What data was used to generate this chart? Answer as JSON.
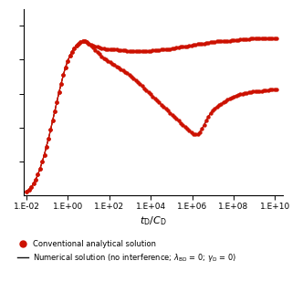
{
  "xlabel_latex": "$t_{\\mathrm{D}}/C_{\\mathrm{D}}$",
  "xtick_labels": [
    "1.E-02",
    "1.E+00",
    "1.E+02",
    "1.E+04",
    "1.E+06",
    "1.E+08",
    "1.E+10"
  ],
  "xtick_values": [
    0.01,
    1.0,
    100.0,
    10000.0,
    1000000.0,
    100000000.0,
    10000000000.0
  ],
  "legend_dot_label": "Conventional analytical solution",
  "legend_line_label": "Numerical solution (no interference; λ_BD = 0; γ_D = 0)",
  "dot_color": "#cc1100",
  "line_color": "#111111",
  "bg_color": "#ffffff",
  "upper_x": [
    0.01,
    0.013,
    0.017,
    0.022,
    0.028,
    0.035,
    0.045,
    0.057,
    0.072,
    0.09,
    0.115,
    0.145,
    0.18,
    0.23,
    0.29,
    0.37,
    0.47,
    0.6,
    0.76,
    0.97,
    1.23,
    1.56,
    1.97,
    2.5,
    3.17,
    4.0,
    5.1,
    6.4,
    8.1,
    10.3,
    13.0,
    16.5,
    21.0,
    26.5,
    33.5,
    42.5,
    54.0,
    68.0,
    86.0,
    110.0,
    140.0,
    177.0,
    225.0,
    285.0,
    360.0,
    456.0,
    578.0,
    732.0,
    928.0,
    1175.0,
    1489.0,
    1887.0,
    2390.0,
    3030.0,
    3840.0,
    4870.0,
    6170.0,
    7820.0,
    9910.0,
    12560.0,
    15920.0,
    20180.0,
    25580.0,
    32430.0,
    41110.0,
    52100.0,
    66100.0,
    83800.0,
    106200.0,
    134600.0,
    170600.0,
    216200.0,
    274000.0,
    347200.0,
    440200.0,
    557900.0,
    707300.0,
    896700.0,
    1136800.0,
    1441000.0,
    1827000.0,
    2317000.0,
    2937000.0,
    3724000.0,
    4723000.0,
    5990000.0,
    7595000.0,
    9629000.0,
    12210000.0,
    15490000.0,
    19640000.0,
    24900000.0,
    31580000.0,
    40040000.0,
    50800000.0,
    64400000.0,
    81700000.0,
    103600000.0,
    131400000.0,
    166600000.0,
    211300000.0,
    267900000.0,
    339800000.0,
    430900000.0,
    546500000.0,
    693000000.0,
    879000000.0,
    1114000000.0,
    1413000000.0,
    1792000000.0,
    2272000000.0,
    2880000000.0,
    3653000000.0,
    4632000000.0,
    5875000000.0,
    7450000000.0,
    9450000000.0,
    11980000000.0
  ],
  "upper_y": [
    0.06,
    0.09,
    0.13,
    0.18,
    0.24,
    0.31,
    0.4,
    0.5,
    0.6,
    0.72,
    0.84,
    0.97,
    1.1,
    1.24,
    1.38,
    1.52,
    1.65,
    1.78,
    1.89,
    1.98,
    2.06,
    2.12,
    2.17,
    2.21,
    2.24,
    2.26,
    2.27,
    2.27,
    2.26,
    2.24,
    2.22,
    2.21,
    2.2,
    2.19,
    2.18,
    2.17,
    2.17,
    2.16,
    2.16,
    2.16,
    2.15,
    2.15,
    2.15,
    2.14,
    2.14,
    2.14,
    2.14,
    2.13,
    2.13,
    2.13,
    2.13,
    2.13,
    2.13,
    2.13,
    2.13,
    2.13,
    2.13,
    2.13,
    2.13,
    2.14,
    2.14,
    2.14,
    2.14,
    2.15,
    2.15,
    2.15,
    2.16,
    2.16,
    2.17,
    2.17,
    2.18,
    2.18,
    2.19,
    2.19,
    2.2,
    2.2,
    2.21,
    2.21,
    2.22,
    2.22,
    2.23,
    2.23,
    2.24,
    2.24,
    2.25,
    2.25,
    2.26,
    2.26,
    2.26,
    2.27,
    2.27,
    2.27,
    2.28,
    2.28,
    2.28,
    2.28,
    2.29,
    2.29,
    2.29,
    2.29,
    2.3,
    2.3,
    2.3,
    2.3,
    2.3,
    2.31,
    2.31,
    2.31,
    2.31,
    2.31,
    2.32,
    2.32,
    2.32,
    2.32,
    2.32,
    2.32,
    2.32,
    2.32
  ],
  "lower_x": [
    0.01,
    0.013,
    0.017,
    0.022,
    0.028,
    0.035,
    0.045,
    0.057,
    0.072,
    0.09,
    0.115,
    0.145,
    0.18,
    0.23,
    0.29,
    0.37,
    0.47,
    0.6,
    0.76,
    0.97,
    1.23,
    1.56,
    1.97,
    2.5,
    3.17,
    4.0,
    5.1,
    6.4,
    8.1,
    10.3,
    13.0,
    16.5,
    21.0,
    26.5,
    33.5,
    42.5,
    54.0,
    68.0,
    86.0,
    110.0,
    140.0,
    177.0,
    225.0,
    285.0,
    360.0,
    456.0,
    578.0,
    732.0,
    928.0,
    1175.0,
    1489.0,
    1887.0,
    2390.0,
    3030.0,
    3840.0,
    4870.0,
    6170.0,
    7820.0,
    9910.0,
    12560.0,
    15920.0,
    20180.0,
    25580.0,
    32430.0,
    41110.0,
    52100.0,
    66100.0,
    83800.0,
    106200.0,
    134600.0,
    170600.0,
    216200.0,
    274000.0,
    347200.0,
    440200.0,
    557900.0,
    707300.0,
    896700.0,
    1136800.0,
    1441000.0,
    1827000.0,
    2317000.0,
    2937000.0,
    3724000.0,
    4723000.0,
    5990000.0,
    7595000.0,
    9629000.0,
    12210000.0,
    15490000.0,
    19640000.0,
    24900000.0,
    31580000.0,
    40040000.0,
    50800000.0,
    64400000.0,
    81700000.0,
    103600000.0,
    131400000.0,
    166600000.0,
    211300000.0,
    267900000.0,
    339800000.0,
    430900000.0,
    546500000.0,
    693000000.0,
    879000000.0,
    1114000000.0,
    1413000000.0,
    1792000000.0,
    2272000000.0,
    2880000000.0,
    3653000000.0,
    4632000000.0,
    5875000000.0,
    7450000000.0,
    9450000000.0,
    11980000000.0
  ],
  "lower_y": [
    0.06,
    0.09,
    0.13,
    0.18,
    0.24,
    0.31,
    0.4,
    0.5,
    0.6,
    0.72,
    0.84,
    0.97,
    1.1,
    1.24,
    1.38,
    1.52,
    1.65,
    1.78,
    1.89,
    1.98,
    2.06,
    2.12,
    2.17,
    2.21,
    2.24,
    2.26,
    2.27,
    2.27,
    2.26,
    2.24,
    2.21,
    2.18,
    2.14,
    2.11,
    2.08,
    2.05,
    2.02,
    2.0,
    1.98,
    1.96,
    1.94,
    1.92,
    1.9,
    1.88,
    1.86,
    1.84,
    1.82,
    1.8,
    1.78,
    1.75,
    1.73,
    1.7,
    1.67,
    1.64,
    1.61,
    1.58,
    1.55,
    1.52,
    1.49,
    1.46,
    1.43,
    1.4,
    1.37,
    1.34,
    1.31,
    1.28,
    1.25,
    1.22,
    1.19,
    1.16,
    1.13,
    1.1,
    1.07,
    1.04,
    1.015,
    0.985,
    0.956,
    0.93,
    0.91,
    0.905,
    0.905,
    0.935,
    0.98,
    1.04,
    1.1,
    1.16,
    1.21,
    1.25,
    1.28,
    1.31,
    1.33,
    1.35,
    1.37,
    1.39,
    1.41,
    1.43,
    1.44,
    1.46,
    1.47,
    1.48,
    1.49,
    1.5,
    1.51,
    1.51,
    1.52,
    1.52,
    1.53,
    1.53,
    1.54,
    1.54,
    1.54,
    1.55,
    1.55,
    1.55,
    1.56,
    1.56,
    1.56,
    1.56
  ]
}
